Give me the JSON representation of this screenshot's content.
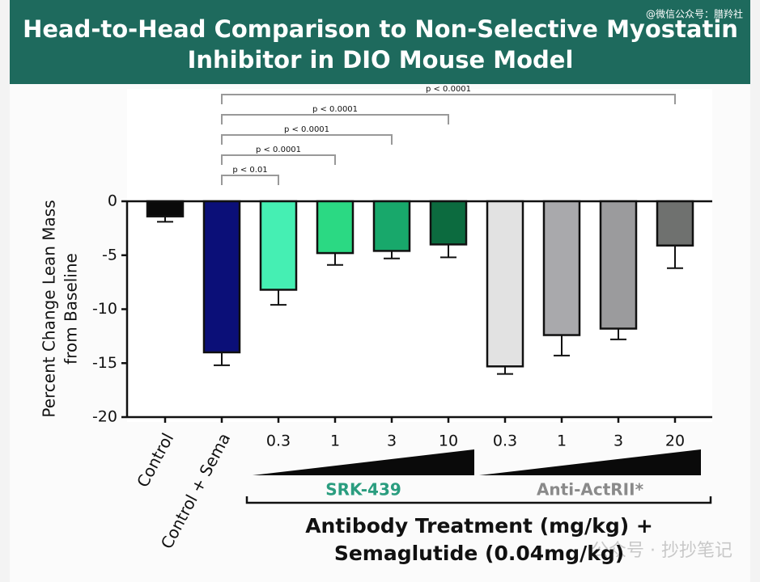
{
  "watermark": "@微信公众号：腊羚社",
  "footer_watermark": "公众号 · 抄抄笔记",
  "chart_data": {
    "type": "bar",
    "title_lines": [
      "Head-to-Head Comparison to Non-Selective Myostatin",
      "Inhibitor in DIO Mouse Model"
    ],
    "y_label_lines": [
      "Percent Change Lean Mass",
      "from Baseline"
    ],
    "x_label_lines": [
      "Antibody Treatment (mg/kg) +",
      "Semaglutide (0.04mg/kg)"
    ],
    "categories": [
      "Control",
      "Control + Sema",
      "0.3",
      "1",
      "3",
      "10",
      "0.3",
      "1",
      "3",
      "20"
    ],
    "values": [
      -1.4,
      -14.0,
      -8.2,
      -4.8,
      -4.6,
      -4.0,
      -15.3,
      -12.4,
      -11.8,
      -4.1
    ],
    "errors": [
      0.5,
      1.2,
      1.4,
      1.1,
      0.7,
      1.2,
      0.7,
      1.9,
      1.0,
      2.1
    ],
    "colors": [
      "#0a0a0a",
      "#0b0f78",
      "#45efb3",
      "#2bd983",
      "#18a86b",
      "#0c6b3f",
      "#e2e2e2",
      "#a9a9ac",
      "#9b9b9d",
      "#6f716f"
    ],
    "groups": [
      {
        "name": "SRK-439",
        "color": "#2a9d7f",
        "start": 2,
        "end": 5
      },
      {
        "name": "Anti-ActRII*",
        "color": "#8a8a8a",
        "start": 6,
        "end": 9
      }
    ],
    "comparisons": [
      {
        "from": 1,
        "to": 2,
        "label": "p < 0.01"
      },
      {
        "from": 1,
        "to": 3,
        "label": "p < 0.0001"
      },
      {
        "from": 1,
        "to": 4,
        "label": "p < 0.0001"
      },
      {
        "from": 1,
        "to": 5,
        "label": "p < 0.0001"
      },
      {
        "from": 1,
        "to": 9,
        "label": "p < 0.0001"
      }
    ],
    "ylim": [
      -20,
      0
    ],
    "yticks": [
      0,
      -5,
      -10,
      -15,
      -20
    ]
  }
}
